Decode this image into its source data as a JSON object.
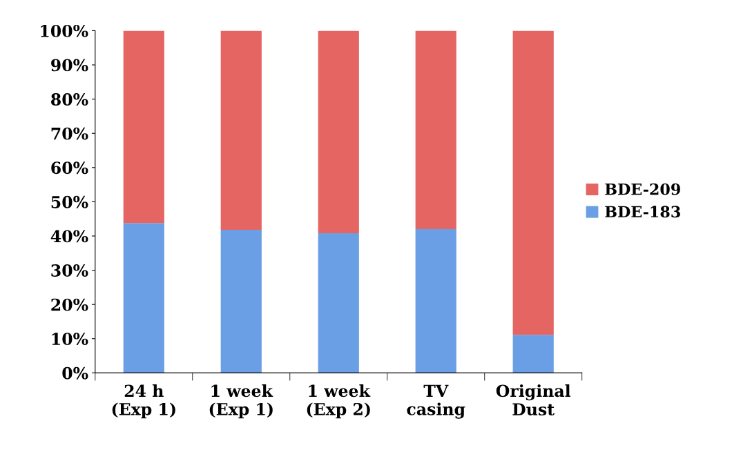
{
  "chart_data": {
    "type": "bar",
    "stacked": true,
    "categories": [
      "24 h\n(Exp 1)",
      "1 week\n(Exp 1)",
      "1 week\n(Exp 2)",
      "TV\ncasing",
      "Original\nDust"
    ],
    "series": [
      {
        "name": "BDE-183",
        "color": "#6a9fe6",
        "values": [
          43.8,
          41.8,
          40.8,
          42.0,
          11.1
        ]
      },
      {
        "name": "BDE-209",
        "color": "#e46562",
        "values": [
          56.2,
          58.2,
          59.2,
          58.0,
          88.9
        ]
      }
    ],
    "ylim": [
      0,
      100
    ],
    "yticks": [
      {
        "value": 0,
        "label": "0%"
      },
      {
        "value": 10,
        "label": "10%"
      },
      {
        "value": 20,
        "label": "20%"
      },
      {
        "value": 30,
        "label": "30%"
      },
      {
        "value": 40,
        "label": "40%"
      },
      {
        "value": 50,
        "label": "50%"
      },
      {
        "value": 60,
        "label": "60%"
      },
      {
        "value": 70,
        "label": "70%"
      },
      {
        "value": 80,
        "label": "80%"
      },
      {
        "value": 90,
        "label": "90%"
      },
      {
        "value": 100,
        "label": "100%"
      }
    ],
    "grid": false,
    "legend": "right"
  }
}
